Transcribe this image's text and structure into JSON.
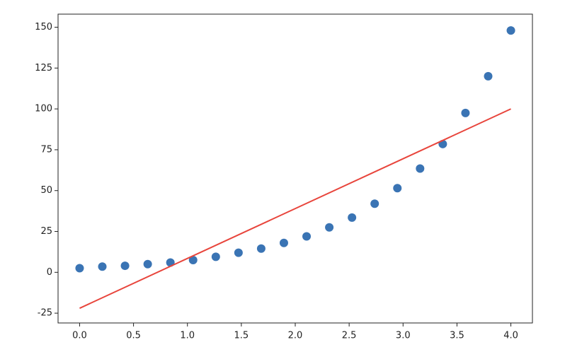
{
  "chart_data": {
    "type": "scatter",
    "series": [
      {
        "type": "scatter",
        "color": "#3a74b4",
        "x": [
          0,
          0.2105,
          0.4211,
          0.6316,
          0.8421,
          1.0526,
          1.2632,
          1.4737,
          1.6842,
          1.8947,
          2.1053,
          2.3158,
          2.5263,
          2.7368,
          2.9474,
          3.1579,
          3.3684,
          3.5789,
          3.7895,
          4.0
        ],
        "values": [
          2.5,
          3.5,
          4,
          5,
          6,
          7.5,
          9.5,
          12,
          14.5,
          18,
          22,
          27.5,
          33.5,
          42,
          51.5,
          63.5,
          78.5,
          97.5,
          120,
          148
        ]
      },
      {
        "type": "line",
        "color": "#e8453c",
        "x": [
          0,
          4.0
        ],
        "values": [
          -22,
          100
        ]
      }
    ],
    "xlim": [
      -0.2,
      4.2
    ],
    "ylim": [
      -31,
      158
    ],
    "xticks": [
      {
        "value": 0,
        "label": "0.0"
      },
      0.5,
      {
        "value": 1,
        "label": "1.0"
      },
      1.5,
      {
        "value": 2,
        "label": "2.0"
      },
      2.5,
      {
        "value": 3,
        "label": "3.0"
      },
      3.5,
      {
        "value": 4,
        "label": "4.0"
      }
    ],
    "yticks": [
      -25,
      0,
      25,
      50,
      75,
      100,
      125,
      150
    ]
  }
}
